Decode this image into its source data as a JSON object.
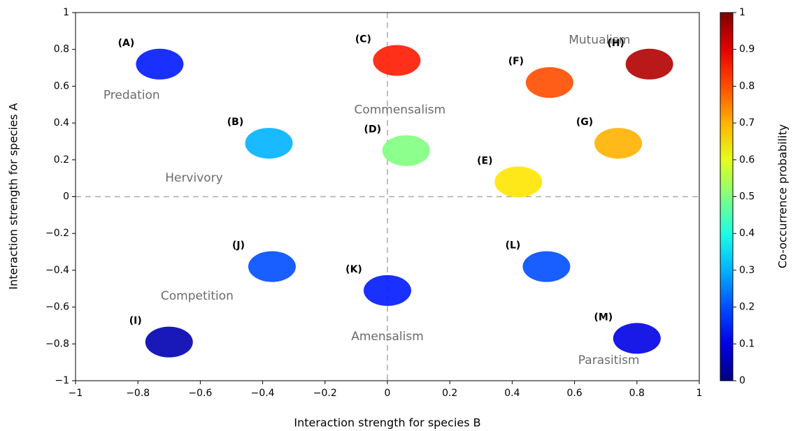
{
  "chart_data": {
    "type": "scatter",
    "x_label": "Interaction strength for species B",
    "y_label": "Interaction strength for species A",
    "colorbar_label": "Co-occurrence probability",
    "colormap": "jet",
    "xlim": [
      -1,
      1
    ],
    "ylim": [
      -1,
      1
    ],
    "clim": [
      0,
      1
    ],
    "xticks": [
      {
        "value": -1,
        "label": "−1"
      },
      {
        "value": -0.8,
        "label": "−0.8"
      },
      {
        "value": -0.6,
        "label": "−0.6"
      },
      {
        "value": -0.4,
        "label": "−0.4"
      },
      {
        "value": -0.2,
        "label": "−0.2"
      },
      0,
      0.2,
      0.4,
      0.6,
      0.8,
      1
    ],
    "yticks": [
      {
        "value": -1,
        "label": "−1"
      },
      {
        "value": -0.8,
        "label": "−0.8"
      },
      {
        "value": -0.6,
        "label": "−0.6"
      },
      {
        "value": -0.4,
        "label": "−0.4"
      },
      {
        "value": -0.2,
        "label": "−0.2"
      },
      0,
      0.2,
      0.4,
      0.6,
      0.8,
      1
    ],
    "cticks": [
      0,
      0.1,
      0.2,
      0.3,
      0.4,
      0.5,
      0.6,
      0.7,
      0.8,
      0.9,
      1
    ],
    "reference_lines": {
      "x": 0,
      "y": 0
    },
    "point_labels": [
      "(A)",
      "(B)",
      "(C)",
      "(D)",
      "(E)",
      "(F)",
      "(G)",
      "(H)",
      "(I)",
      "(J)",
      "(K)",
      "(L)",
      "(M)"
    ],
    "x": [
      -0.73,
      -0.38,
      0.03,
      0.06,
      0.42,
      0.52,
      0.74,
      0.84,
      -0.7,
      -0.37,
      0.0,
      0.51,
      0.8
    ],
    "y": [
      0.72,
      0.29,
      0.74,
      0.25,
      0.08,
      0.62,
      0.29,
      0.72,
      -0.79,
      -0.38,
      -0.51,
      -0.38,
      -0.77
    ],
    "probability": [
      0.15,
      0.3,
      0.85,
      0.5,
      0.65,
      0.8,
      0.7,
      0.95,
      0.05,
      0.2,
      0.15,
      0.2,
      0.1
    ],
    "annotations": [
      "Predation",
      "Hervivory",
      "Commensalism",
      "Mutualism",
      "Competition",
      "Amensalism",
      "Parasitism"
    ]
  }
}
